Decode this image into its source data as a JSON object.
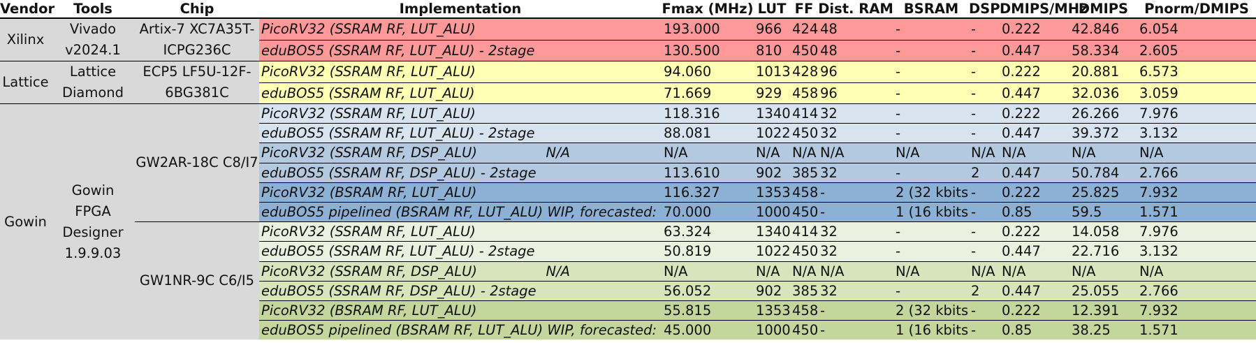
{
  "headers": [
    "Vendor",
    "Tools",
    "Chip",
    "Implementation",
    "Fmax (MHz)",
    "LUT",
    "FF",
    "Dist. RAM",
    "BSRAM",
    "DSP",
    "DMIPS/MHz",
    "DMIPS",
    "Pnorm/DMIPS"
  ],
  "vendors": {
    "xilinx": {
      "vendor": "Xilinx",
      "tools": "Vivado v2024.1",
      "chip": "Artix-7 XC7A35T-ICPG236C"
    },
    "lattice": {
      "vendor": "Lattice",
      "tools": "Lattice Diamond",
      "chip": "ECP5 LF5U-12F-6BG381C"
    },
    "gowin": {
      "vendor": "Gowin",
      "tools": "Gowin FPGA Designer 1.9.9.03",
      "chip_a": "GW2AR-18C C8/I7",
      "chip_b": "GW1NR-9C C6/I5"
    }
  },
  "colors": {
    "group_cell": "#d9d9d9",
    "xilinx": "#ff9999",
    "lattice": "#ffffb3",
    "gowin_a_light": "#d7e4ef",
    "gowin_a_mid": "#b3c9e0",
    "gowin_a_dark": "#8db1d5",
    "gowin_b_light": "#ebf1de",
    "gowin_b_mid": "#d8e4bc",
    "gowin_b_dark": "#c3d69b"
  },
  "rows": [
    {
      "impl": "PicoRV32 (SSRAM RF, LUT_ALU)",
      "note": "",
      "fmax": "193.000",
      "lut": "966",
      "ff": "424",
      "dist_ram": "48",
      "bsram": "-",
      "dsp": "-",
      "dmips_mhz": "0.222",
      "dmips": "42.846",
      "pnorm": "6.054",
      "color": "#ff9999"
    },
    {
      "impl": "eduBOS5  (SSRAM RF, LUT_ALU) - 2stage",
      "note": "",
      "fmax": "130.500",
      "lut": "810",
      "ff": "450",
      "dist_ram": "48",
      "bsram": "-",
      "dsp": "-",
      "dmips_mhz": "0.447",
      "dmips": "58.334",
      "pnorm": "2.605",
      "color": "#ff9999"
    },
    {
      "impl": "PicoRV32 (SSRAM RF, LUT_ALU)",
      "note": "",
      "fmax": "94.060",
      "lut": "1013",
      "ff": "428",
      "dist_ram": "96",
      "bsram": "-",
      "dsp": "-",
      "dmips_mhz": "0.222",
      "dmips": "20.881",
      "pnorm": "6.573",
      "color": "#ffffb3"
    },
    {
      "impl": "eduBOS5  (SSRAM RF, LUT_ALU)",
      "note": "",
      "fmax": "71.669",
      "lut": "929",
      "ff": "458",
      "dist_ram": "96",
      "bsram": "-",
      "dsp": "-",
      "dmips_mhz": "0.447",
      "dmips": "32.036",
      "pnorm": "3.059",
      "color": "#ffffb3"
    },
    {
      "impl": "PicoRV32 (SSRAM RF, LUT_ALU)",
      "note": "",
      "fmax": "118.316",
      "lut": "1340",
      "ff": "414",
      "dist_ram": "32",
      "bsram": "-",
      "dsp": "-",
      "dmips_mhz": "0.222",
      "dmips": "26.266",
      "pnorm": "7.976",
      "color": "#d7e4ef"
    },
    {
      "impl": "eduBOS5  (SSRAM RF, LUT_ALU) - 2stage",
      "note": "",
      "fmax": "88.081",
      "lut": "1022",
      "ff": "450",
      "dist_ram": "32",
      "bsram": "-",
      "dsp": "-",
      "dmips_mhz": "0.447",
      "dmips": "39.372",
      "pnorm": "3.132",
      "color": "#d7e4ef"
    },
    {
      "impl": "PicoRV32 (SSRAM RF, DSP_ALU)",
      "note": "N/A",
      "fmax": "N/A",
      "lut": "N/A",
      "ff": "N/A",
      "dist_ram": "N/A",
      "bsram": "N/A",
      "dsp": "N/A",
      "dmips_mhz": "N/A",
      "dmips": "N/A",
      "pnorm": "N/A",
      "color": "#b3c9e0"
    },
    {
      "impl": "eduBOS5  (SSRAM RF, DSP_ALU) - 2stage",
      "note": "",
      "fmax": "113.610",
      "lut": "902",
      "ff": "385",
      "dist_ram": "32",
      "bsram": "-",
      "dsp": "2",
      "dmips_mhz": "0.447",
      "dmips": "50.784",
      "pnorm": "2.766",
      "color": "#b3c9e0"
    },
    {
      "impl": "PicoRV32 (BSRAM RF, LUT_ALU)",
      "note": "",
      "fmax": "116.327",
      "lut": "1353",
      "ff": "458",
      "dist_ram": "-",
      "bsram": "2 (32 kbits)",
      "dsp": "-",
      "dmips_mhz": "0.222",
      "dmips": "25.825",
      "pnorm": "7.932",
      "color": "#8db1d5"
    },
    {
      "impl": "eduBOS5 pipelined  (BSRAM RF, LUT_ALU) WIP, forecasted:",
      "note": "",
      "fmax": "70.000",
      "lut": "1000",
      "ff": "450",
      "dist_ram": "-",
      "bsram": "1 (16 kbits)",
      "dsp": "-",
      "dmips_mhz": "0.85",
      "dmips": "59.5",
      "pnorm": "1.571",
      "color": "#8db1d5"
    },
    {
      "impl": "PicoRV32 (SSRAM RF, LUT_ALU)",
      "note": "",
      "fmax": "63.324",
      "lut": "1340",
      "ff": "414",
      "dist_ram": "32",
      "bsram": "-",
      "dsp": "-",
      "dmips_mhz": "0.222",
      "dmips": "14.058",
      "pnorm": "7.976",
      "color": "#ebf1de"
    },
    {
      "impl": "eduBOS5  (SSRAM RF, LUT_ALU) - 2stage",
      "note": "",
      "fmax": "50.819",
      "lut": "1022",
      "ff": "450",
      "dist_ram": "32",
      "bsram": "-",
      "dsp": "-",
      "dmips_mhz": "0.447",
      "dmips": "22.716",
      "pnorm": "3.132",
      "color": "#ebf1de"
    },
    {
      "impl": "PicoRV32 (SSRAM RF, DSP_ALU)",
      "note": "N/A",
      "fmax": "N/A",
      "lut": "N/A",
      "ff": "N/A",
      "dist_ram": "N/A",
      "bsram": "N/A",
      "dsp": "N/A",
      "dmips_mhz": "N/A",
      "dmips": "N/A",
      "pnorm": "N/A",
      "color": "#d8e4bc"
    },
    {
      "impl": "eduBOS5  (SSRAM RF, DSP_ALU) - 2stage",
      "note": "",
      "fmax": "56.052",
      "lut": "902",
      "ff": "385",
      "dist_ram": "32",
      "bsram": "-",
      "dsp": "2",
      "dmips_mhz": "0.447",
      "dmips": "25.055",
      "pnorm": "2.766",
      "color": "#d8e4bc"
    },
    {
      "impl": "PicoRV32 (BSRAM RF, LUT_ALU)",
      "note": "",
      "fmax": "55.815",
      "lut": "1353",
      "ff": "458",
      "dist_ram": "-",
      "bsram": "2 (32 kbits)",
      "dsp": "-",
      "dmips_mhz": "0.222",
      "dmips": "12.391",
      "pnorm": "7.932",
      "color": "#c3d69b"
    },
    {
      "impl": "eduBOS5 pipelined  (BSRAM RF, LUT_ALU) WIP, forecasted:",
      "note": "",
      "fmax": "45.000",
      "lut": "1000",
      "ff": "450",
      "dist_ram": "-",
      "bsram": "1 (16 kbits)",
      "dsp": "-",
      "dmips_mhz": "0.85",
      "dmips": "38.25",
      "pnorm": "1.571",
      "color": "#c3d69b"
    }
  ]
}
